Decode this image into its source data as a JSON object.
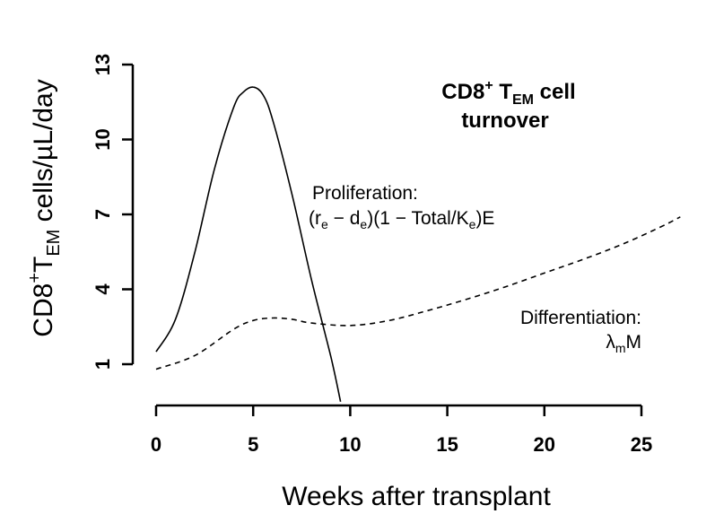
{
  "chart_data": {
    "type": "line",
    "title_line1_main": "CD8",
    "title_line1_sup": "+",
    "title_line1_mid": " T",
    "title_line1_sub": "EM",
    "title_line1_end": " cell",
    "title_line2": "turnover",
    "xlabel": "Weeks after transplant",
    "ylabel_main": "CD8",
    "ylabel_sup": "+",
    "ylabel_t": "T",
    "ylabel_sub": "EM",
    "ylabel_end": " cells/µL/day",
    "xlim": [
      0,
      25
    ],
    "ylim": [
      1,
      13
    ],
    "x_ticks": [
      0,
      5,
      10,
      15,
      20,
      25
    ],
    "x_tick_labels": [
      "0",
      "5",
      "10",
      "15",
      "20",
      "25"
    ],
    "y_ticks": [
      1,
      4,
      7,
      10,
      13
    ],
    "y_tick_labels": [
      "1",
      "4",
      "7",
      "10",
      "13"
    ],
    "series": [
      {
        "name": "Proliferation",
        "style": "solid",
        "x": [
          0,
          1,
          2,
          3,
          4,
          4.5,
          5,
          5.5,
          6,
          7,
          8,
          9,
          9.5
        ],
        "y": [
          1.5,
          2.8,
          5.5,
          8.8,
          11.3,
          11.9,
          12.1,
          11.8,
          10.8,
          7.8,
          4.4,
          1.3,
          -0.5
        ]
      },
      {
        "name": "Differentiation",
        "style": "dashed",
        "x": [
          0,
          2,
          4,
          5,
          6,
          7,
          8,
          10,
          12,
          14,
          16,
          18,
          20,
          22,
          24,
          26,
          27
        ],
        "y": [
          0.8,
          1.35,
          2.4,
          2.75,
          2.85,
          2.8,
          2.65,
          2.55,
          2.75,
          3.15,
          3.6,
          4.1,
          4.65,
          5.2,
          5.8,
          6.5,
          6.9
        ]
      }
    ],
    "annotations": {
      "proliferation_title": "Proliferation:",
      "prolif_open": "(r",
      "prolif_sub1": "e",
      "prolif_minus": " − d",
      "prolif_sub2": "e",
      "prolif_mid": ")(1 − Total/K",
      "prolif_sub3": "e",
      "prolif_end": ")E",
      "differentiation_title": "Differentiation:",
      "diff_lambda": "λ",
      "diff_sub": "m",
      "diff_m": "M"
    }
  }
}
